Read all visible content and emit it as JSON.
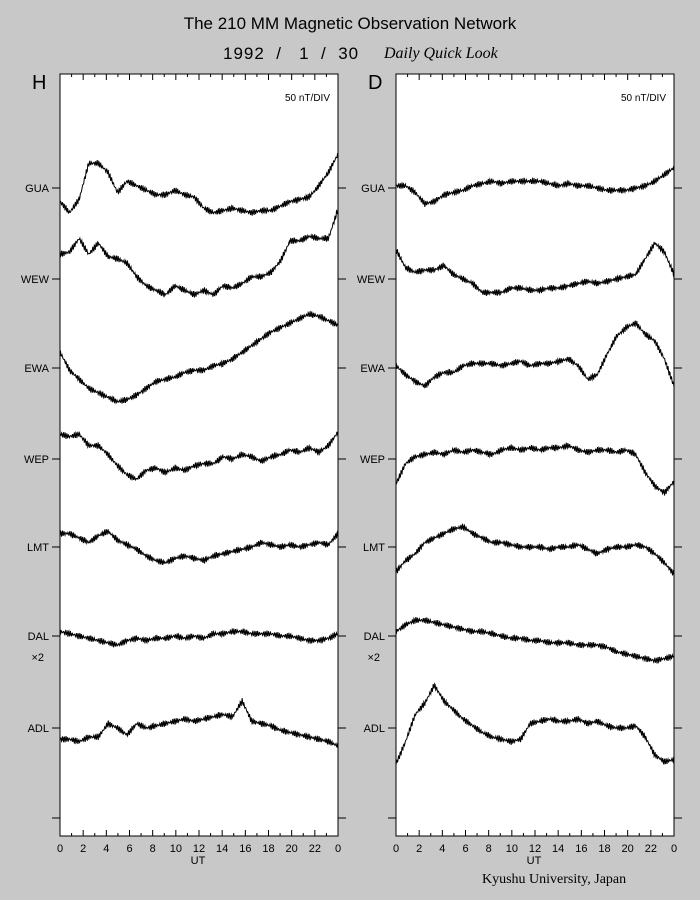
{
  "header": {
    "title": "The 210 MM Magnetic Observation Network",
    "date": "1992  /   1  /  30",
    "subtitle": "Daily Quick Look"
  },
  "footer": {
    "credit": "Kyushu University, Japan"
  },
  "chart_data": [
    {
      "type": "line",
      "panel_label": "H",
      "scale_label": "50 nT/DIV",
      "xlabel": "UT",
      "xlim": [
        0,
        24
      ],
      "x_ticks": [
        "0",
        "2",
        "4",
        "6",
        "8",
        "10",
        "12",
        "14",
        "16",
        "18",
        "20",
        "22",
        "0"
      ],
      "stations": [
        "GUA",
        "WEW",
        "EWA",
        "WEP",
        "LMT",
        "DAL",
        "ADL"
      ],
      "station_notes": {
        "DAL": "×2"
      },
      "series": [
        {
          "name": "GUA",
          "values": [
            -0.3,
            -0.55,
            -0.25,
            0.55,
            0.55,
            0.35,
            -0.1,
            0.15,
            0.05,
            -0.05,
            -0.15,
            -0.15,
            -0.05,
            -0.15,
            -0.2,
            -0.45,
            -0.55,
            -0.5,
            -0.45,
            -0.5,
            -0.55,
            -0.5,
            -0.5,
            -0.4,
            -0.3,
            -0.25,
            -0.2,
            0.05,
            0.35,
            0.75
          ]
        },
        {
          "name": "WEW",
          "values": [
            0.55,
            0.6,
            0.9,
            0.55,
            0.8,
            0.5,
            0.45,
            0.35,
            0.05,
            -0.15,
            -0.25,
            -0.35,
            -0.15,
            -0.25,
            -0.35,
            -0.25,
            -0.35,
            -0.15,
            -0.2,
            -0.1,
            0.05,
            0.05,
            0.15,
            0.4,
            0.85,
            0.85,
            0.95,
            0.9,
            0.9,
            1.55
          ]
        },
        {
          "name": "EWA",
          "values": [
            0.35,
            -0.05,
            -0.25,
            -0.45,
            -0.55,
            -0.65,
            -0.75,
            -0.7,
            -0.6,
            -0.45,
            -0.3,
            -0.25,
            -0.2,
            -0.1,
            -0.05,
            -0.05,
            0.05,
            0.1,
            0.2,
            0.35,
            0.5,
            0.65,
            0.8,
            0.9,
            1.0,
            1.1,
            1.2,
            1.15,
            1.05,
            0.95
          ]
        },
        {
          "name": "WEP",
          "values": [
            0.55,
            0.5,
            0.55,
            0.3,
            0.3,
            0.1,
            -0.15,
            -0.35,
            -0.45,
            -0.25,
            -0.2,
            -0.3,
            -0.2,
            -0.25,
            -0.15,
            -0.1,
            -0.1,
            0.05,
            0.0,
            0.1,
            0.05,
            -0.05,
            0.05,
            0.1,
            0.2,
            0.15,
            0.25,
            0.15,
            0.3,
            0.6
          ]
        },
        {
          "name": "LMT",
          "values": [
            0.3,
            0.3,
            0.2,
            0.1,
            0.25,
            0.35,
            0.15,
            0.05,
            -0.05,
            -0.2,
            -0.3,
            -0.35,
            -0.25,
            -0.2,
            -0.25,
            -0.3,
            -0.2,
            -0.15,
            -0.1,
            -0.05,
            0.0,
            0.1,
            0.05,
            0.0,
            0.05,
            0.0,
            0.05,
            0.1,
            0.05,
            0.3
          ]
        },
        {
          "name": "DAL",
          "values": [
            0.1,
            0.05,
            0.0,
            -0.05,
            -0.1,
            -0.15,
            -0.2,
            -0.1,
            -0.05,
            -0.1,
            -0.05,
            -0.05,
            0.0,
            -0.05,
            0.0,
            -0.05,
            0.05,
            0.05,
            0.1,
            0.1,
            0.05,
            0.05,
            0.05,
            0.0,
            0.0,
            -0.05,
            -0.1,
            -0.1,
            -0.05,
            0.05
          ]
        },
        {
          "name": "ADL",
          "values": [
            -0.25,
            -0.25,
            -0.3,
            -0.2,
            -0.2,
            0.1,
            0.0,
            -0.15,
            0.1,
            0.0,
            0.05,
            0.1,
            0.15,
            0.2,
            0.15,
            0.2,
            0.25,
            0.3,
            0.25,
            0.6,
            0.15,
            0.1,
            0.05,
            -0.05,
            -0.1,
            -0.15,
            -0.2,
            -0.25,
            -0.3,
            -0.4
          ]
        }
      ]
    },
    {
      "type": "line",
      "panel_label": "D",
      "scale_label": "50 nT/DIV",
      "xlabel": "UT",
      "xlim": [
        0,
        24
      ],
      "x_ticks": [
        "0",
        "2",
        "4",
        "6",
        "8",
        "10",
        "12",
        "14",
        "16",
        "18",
        "20",
        "22",
        "0"
      ],
      "stations": [
        "GUA",
        "WEW",
        "EWA",
        "WEP",
        "LMT",
        "DAL",
        "ADL"
      ],
      "station_notes": {
        "DAL": "×2"
      },
      "series": [
        {
          "name": "GUA",
          "values": [
            0.05,
            0.05,
            -0.1,
            -0.35,
            -0.3,
            -0.15,
            -0.1,
            -0.05,
            0.05,
            0.1,
            0.15,
            0.1,
            0.15,
            0.15,
            0.15,
            0.15,
            0.1,
            0.05,
            0.1,
            0.05,
            0.05,
            0.0,
            -0.05,
            -0.05,
            -0.05,
            0.0,
            0.05,
            0.15,
            0.3,
            0.45
          ]
        },
        {
          "name": "WEW",
          "values": [
            0.65,
            0.25,
            0.15,
            0.2,
            0.2,
            0.3,
            0.1,
            0.0,
            -0.1,
            -0.3,
            -0.3,
            -0.3,
            -0.2,
            -0.2,
            -0.25,
            -0.25,
            -0.2,
            -0.2,
            -0.15,
            -0.1,
            -0.05,
            -0.1,
            -0.05,
            0.0,
            0.05,
            0.1,
            0.45,
            0.8,
            0.6,
            0.1
          ]
        },
        {
          "name": "EWA",
          "values": [
            0.05,
            -0.15,
            -0.3,
            -0.4,
            -0.2,
            -0.1,
            -0.1,
            0.05,
            0.1,
            0.1,
            0.1,
            0.05,
            0.1,
            0.15,
            0.05,
            0.1,
            0.1,
            0.15,
            0.2,
            0.05,
            -0.25,
            -0.15,
            0.3,
            0.7,
            0.9,
            1.0,
            0.75,
            0.6,
            0.2,
            -0.4
          ]
        },
        {
          "name": "WEP",
          "values": [
            -0.55,
            -0.1,
            0.05,
            0.1,
            0.15,
            0.1,
            0.2,
            0.15,
            0.2,
            0.15,
            0.1,
            0.2,
            0.25,
            0.2,
            0.25,
            0.2,
            0.25,
            0.25,
            0.3,
            0.2,
            0.15,
            0.2,
            0.2,
            0.15,
            0.2,
            0.1,
            -0.3,
            -0.6,
            -0.75,
            -0.5
          ]
        },
        {
          "name": "LMT",
          "values": [
            -0.55,
            -0.3,
            -0.15,
            0.1,
            0.2,
            0.3,
            0.4,
            0.45,
            0.3,
            0.2,
            0.1,
            0.1,
            0.05,
            0.0,
            0.0,
            0.0,
            -0.05,
            0.0,
            0.0,
            0.05,
            -0.05,
            -0.15,
            -0.05,
            0.0,
            0.0,
            0.05,
            0.0,
            -0.15,
            -0.35,
            -0.6
          ]
        },
        {
          "name": "DAL",
          "values": [
            0.1,
            0.25,
            0.35,
            0.35,
            0.3,
            0.25,
            0.2,
            0.15,
            0.1,
            0.1,
            0.05,
            0.0,
            -0.05,
            -0.05,
            -0.1,
            -0.1,
            -0.15,
            -0.15,
            -0.15,
            -0.2,
            -0.2,
            -0.2,
            -0.25,
            -0.35,
            -0.4,
            -0.45,
            -0.5,
            -0.55,
            -0.5,
            -0.45
          ]
        },
        {
          "name": "ADL",
          "values": [
            -0.8,
            -0.3,
            0.3,
            0.55,
            0.95,
            0.6,
            0.4,
            0.2,
            0.05,
            -0.1,
            -0.2,
            -0.25,
            -0.3,
            -0.25,
            0.1,
            0.15,
            0.2,
            0.15,
            0.15,
            0.2,
            0.1,
            0.15,
            0.05,
            0.0,
            0.0,
            0.05,
            -0.2,
            -0.6,
            -0.75,
            -0.7
          ]
        }
      ]
    }
  ]
}
